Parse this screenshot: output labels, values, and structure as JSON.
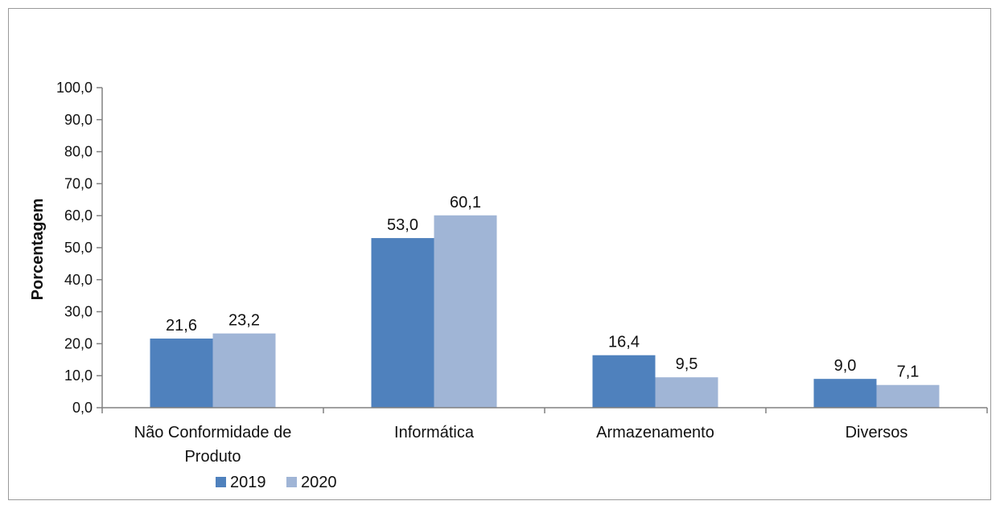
{
  "chart_data": {
    "type": "bar",
    "title": "",
    "xlabel": "",
    "ylabel": "Porcentagem",
    "ylim": [
      0,
      100
    ],
    "ytick_step": 10,
    "ytick_labels": [
      "0,0",
      "10,0",
      "20,0",
      "30,0",
      "40,0",
      "50,0",
      "60,0",
      "70,0",
      "80,0",
      "90,0",
      "100,0"
    ],
    "categories": [
      [
        "Não Conformidade de",
        "Produto"
      ],
      [
        "Informática"
      ],
      [
        "Armazenamento"
      ],
      [
        "Diversos"
      ]
    ],
    "series": [
      {
        "name": "2019",
        "color": "#4f81bd",
        "values": [
          21.6,
          53.0,
          16.4,
          9.0
        ],
        "labels": [
          "21,6",
          "53,0",
          "16,4",
          "9,0"
        ]
      },
      {
        "name": "2020",
        "color": "#a0b5d6",
        "values": [
          23.2,
          60.1,
          9.5,
          7.1
        ],
        "labels": [
          "23,2",
          "60,1",
          "9,5",
          "7,1"
        ]
      }
    ],
    "grid": false,
    "legend_position": "bottom"
  }
}
